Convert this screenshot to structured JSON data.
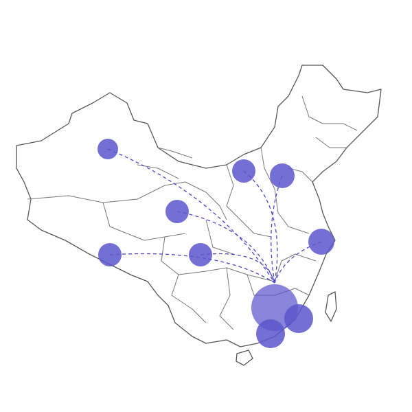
{
  "map": {
    "region": "China",
    "bubble_color": "#5a56cc",
    "line_color": "#4a46c8",
    "flow_target": 7,
    "points": [
      {
        "size": 15
      },
      {
        "size": 17
      },
      {
        "size": 18
      },
      {
        "size": 17
      },
      {
        "size": 17
      },
      {
        "size": 17
      },
      {
        "size": 19
      },
      {
        "size": 34
      },
      {
        "size": 21
      },
      {
        "size": 21
      }
    ]
  }
}
